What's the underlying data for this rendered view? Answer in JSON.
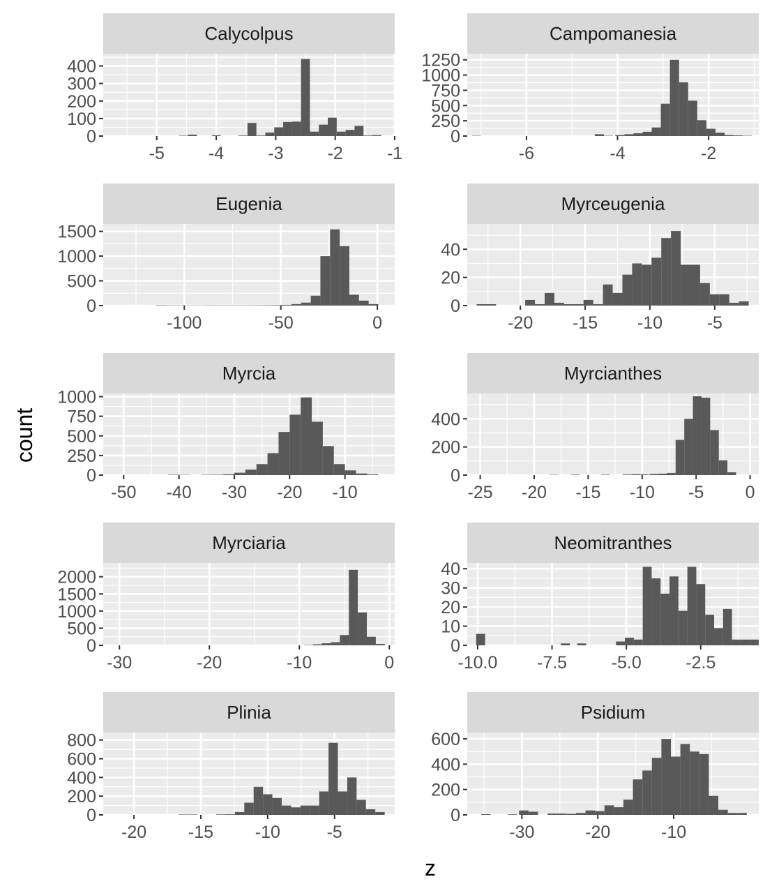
{
  "chart_data": {
    "type": "histogram-facets",
    "xlabel": "z",
    "ylabel": "count",
    "colors": {
      "bar": "#595959",
      "panel": "#ebebeb",
      "strip": "#d9d9d9",
      "grid": "#ffffff"
    },
    "facets": [
      {
        "name": "Calycolpus",
        "xlim": [
          -5.9,
          -1.0
        ],
        "ylim": [
          0,
          470
        ],
        "xticks": [
          -5,
          -4,
          -3,
          -2,
          -1
        ],
        "xticklabels": [
          "-5",
          "-4",
          "-3",
          "-2",
          "-1"
        ],
        "yticks": [
          0,
          100,
          200,
          300,
          400
        ],
        "yticklabels": [
          "0",
          "100",
          "200",
          "300",
          "400"
        ],
        "bins": [
          [
            -4.55,
            2
          ],
          [
            -4.4,
            8
          ],
          [
            -4.0,
            4
          ],
          [
            -3.55,
            3
          ],
          [
            -3.4,
            75
          ],
          [
            -3.25,
            3
          ],
          [
            -3.1,
            20
          ],
          [
            -2.95,
            50
          ],
          [
            -2.8,
            80
          ],
          [
            -2.65,
            82
          ],
          [
            -2.5,
            440
          ],
          [
            -2.35,
            25
          ],
          [
            -2.2,
            65
          ],
          [
            -2.05,
            105
          ],
          [
            -1.9,
            25
          ],
          [
            -1.75,
            35
          ],
          [
            -1.6,
            58
          ],
          [
            -1.45,
            3
          ],
          [
            -1.3,
            5
          ]
        ],
        "binwidth": 0.15
      },
      {
        "name": "Campomanesia",
        "xlim": [
          -7.3,
          -0.9
        ],
        "ylim": [
          0,
          1350
        ],
        "xticks": [
          -6,
          -4,
          -2
        ],
        "xticklabels": [
          "-6",
          "-4",
          "-2"
        ],
        "yticks": [
          0,
          250,
          500,
          750,
          1000,
          1250
        ],
        "yticklabels": [
          "0",
          "250",
          "500",
          "750",
          "1000",
          "1250"
        ],
        "bins": [
          [
            -7.1,
            5
          ],
          [
            -4.4,
            30
          ],
          [
            -4.2,
            5
          ],
          [
            -3.95,
            15
          ],
          [
            -3.75,
            30
          ],
          [
            -3.55,
            45
          ],
          [
            -3.35,
            70
          ],
          [
            -3.15,
            140
          ],
          [
            -2.95,
            530
          ],
          [
            -2.75,
            1250
          ],
          [
            -2.55,
            880
          ],
          [
            -2.35,
            580
          ],
          [
            -2.15,
            260
          ],
          [
            -1.95,
            120
          ],
          [
            -1.75,
            55
          ],
          [
            -1.55,
            15
          ],
          [
            -1.35,
            10
          ],
          [
            -1.15,
            5
          ]
        ],
        "binwidth": 0.2
      },
      {
        "name": "Eugenia",
        "xlim": [
          -142,
          9
        ],
        "ylim": [
          0,
          1650
        ],
        "xticks": [
          -100,
          -50,
          0
        ],
        "xticklabels": [
          "-100",
          "-50",
          "0"
        ],
        "yticks": [
          0,
          500,
          1000,
          1500
        ],
        "yticklabels": [
          "0",
          "500",
          "1000",
          "1500"
        ],
        "bins": [
          [
            -112,
            8
          ],
          [
            -107,
            5
          ],
          [
            -102,
            5
          ],
          [
            -97,
            4
          ],
          [
            -92,
            4
          ],
          [
            -87,
            6
          ],
          [
            -82,
            5
          ],
          [
            -77,
            5
          ],
          [
            -72,
            5
          ],
          [
            -67,
            5
          ],
          [
            -62,
            6
          ],
          [
            -57,
            8
          ],
          [
            -52,
            10
          ],
          [
            -47,
            15
          ],
          [
            -42,
            30
          ],
          [
            -37,
            60
          ],
          [
            -32,
            200
          ],
          [
            -27,
            1000
          ],
          [
            -22,
            1540
          ],
          [
            -17,
            1200
          ],
          [
            -12,
            220
          ],
          [
            -7,
            100
          ],
          [
            -2,
            30
          ]
        ],
        "binwidth": 5
      },
      {
        "name": "Myrceugenia",
        "xlim": [
          -24.1,
          -1.6
        ],
        "ylim": [
          0,
          58
        ],
        "xticks": [
          -20,
          -15,
          -10,
          -5
        ],
        "xticklabels": [
          "-20",
          "-15",
          "-10",
          "-5"
        ],
        "yticks": [
          0,
          20,
          40
        ],
        "yticklabels": [
          "0",
          "20",
          "40"
        ],
        "bins": [
          [
            -23.0,
            1
          ],
          [
            -22.25,
            1
          ],
          [
            -19.25,
            4
          ],
          [
            -18.5,
            1
          ],
          [
            -17.75,
            9
          ],
          [
            -17.0,
            2
          ],
          [
            -16.25,
            1
          ],
          [
            -15.5,
            1
          ],
          [
            -14.75,
            4
          ],
          [
            -14.0,
            1
          ],
          [
            -13.25,
            15
          ],
          [
            -12.5,
            9
          ],
          [
            -11.75,
            22
          ],
          [
            -11.0,
            30
          ],
          [
            -10.25,
            29
          ],
          [
            -9.5,
            34
          ],
          [
            -8.75,
            48
          ],
          [
            -8.0,
            53
          ],
          [
            -7.25,
            29
          ],
          [
            -6.5,
            29
          ],
          [
            -5.75,
            16
          ],
          [
            -5.0,
            8
          ],
          [
            -4.25,
            8
          ],
          [
            -3.5,
            2
          ],
          [
            -2.75,
            3
          ]
        ],
        "binwidth": 0.75
      },
      {
        "name": "Myrcia",
        "xlim": [
          -53.7,
          -1.0
        ],
        "ylim": [
          0,
          1040
        ],
        "xticks": [
          -50,
          -40,
          -30,
          -20,
          -10
        ],
        "xticklabels": [
          "-50",
          "-40",
          "-30",
          "-20",
          "-10"
        ],
        "yticks": [
          0,
          250,
          500,
          750,
          1000
        ],
        "yticklabels": [
          "0",
          "250",
          "500",
          "750",
          "1000"
        ],
        "bins": [
          [
            -41,
            5
          ],
          [
            -39,
            3
          ],
          [
            -35,
            4
          ],
          [
            -33,
            5
          ],
          [
            -31,
            10
          ],
          [
            -29,
            30
          ],
          [
            -27,
            70
          ],
          [
            -25,
            140
          ],
          [
            -23,
            280
          ],
          [
            -21,
            550
          ],
          [
            -19,
            770
          ],
          [
            -17,
            990
          ],
          [
            -15,
            680
          ],
          [
            -13,
            370
          ],
          [
            -11,
            140
          ],
          [
            -9,
            60
          ],
          [
            -7,
            20
          ],
          [
            -5,
            8
          ]
        ],
        "binwidth": 2
      },
      {
        "name": "Myrcianthes",
        "xlim": [
          -26.2,
          0.8
        ],
        "ylim": [
          0,
          580
        ],
        "xticks": [
          -25,
          -20,
          -15,
          -10,
          -5,
          0
        ],
        "xticklabels": [
          "-25",
          "-20",
          "-15",
          "-10",
          "-5",
          "0"
        ],
        "yticks": [
          0,
          200,
          400
        ],
        "yticklabels": [
          "0",
          "200",
          "400"
        ],
        "bins": [
          [
            -18.2,
            2
          ],
          [
            -16.2,
            3
          ],
          [
            -13.4,
            3
          ],
          [
            -11.4,
            4
          ],
          [
            -10.6,
            6
          ],
          [
            -9.8,
            5
          ],
          [
            -8.9,
            8
          ],
          [
            -8.1,
            10
          ],
          [
            -7.3,
            15
          ],
          [
            -6.5,
            250
          ],
          [
            -5.7,
            400
          ],
          [
            -4.9,
            560
          ],
          [
            -4.1,
            550
          ],
          [
            -3.3,
            320
          ],
          [
            -2.5,
            105
          ],
          [
            -1.7,
            20
          ]
        ],
        "binwidth": 0.8
      },
      {
        "name": "Myrciaria",
        "xlim": [
          -31.8,
          0.6
        ],
        "ylim": [
          0,
          2400
        ],
        "xticks": [
          -30,
          -20,
          -10,
          0
        ],
        "xticklabels": [
          "-30",
          "-20",
          "-10",
          "0"
        ],
        "yticks": [
          0,
          500,
          1000,
          1500,
          2000
        ],
        "yticklabels": [
          "0",
          "500",
          "1000",
          "1500",
          "2000"
        ],
        "bins": [
          [
            -9.0,
            10
          ],
          [
            -8.0,
            30
          ],
          [
            -7.0,
            60
          ],
          [
            -6.0,
            90
          ],
          [
            -5.0,
            300
          ],
          [
            -4.0,
            2200
          ],
          [
            -3.0,
            960
          ],
          [
            -2.0,
            250
          ],
          [
            -1.0,
            40
          ]
        ],
        "binwidth": 1
      },
      {
        "name": "Neomitranthes",
        "xlim": [
          -10.35,
          -0.55
        ],
        "ylim": [
          0,
          43
        ],
        "xticks": [
          -10.0,
          -7.5,
          -5.0,
          -2.5
        ],
        "xticklabels": [
          "-10.0",
          "-7.5",
          "-5.0",
          "-2.5"
        ],
        "yticks": [
          0,
          10,
          20,
          30,
          40
        ],
        "yticklabels": [
          "0",
          "10",
          "20",
          "30",
          "40"
        ],
        "bins": [
          [
            -9.9,
            6
          ],
          [
            -7.05,
            1
          ],
          [
            -6.5,
            1
          ],
          [
            -5.2,
            2
          ],
          [
            -4.9,
            4
          ],
          [
            -4.6,
            3
          ],
          [
            -4.3,
            41
          ],
          [
            -4.0,
            35
          ],
          [
            -3.7,
            27
          ],
          [
            -3.4,
            36
          ],
          [
            -3.1,
            18
          ],
          [
            -2.8,
            41
          ],
          [
            -2.5,
            32
          ],
          [
            -2.2,
            16
          ],
          [
            -1.9,
            9
          ],
          [
            -1.6,
            19
          ],
          [
            -1.3,
            3
          ],
          [
            -1.0,
            3
          ],
          [
            -0.7,
            3
          ]
        ],
        "binwidth": 0.3
      },
      {
        "name": "Plinia",
        "xlim": [
          -22.3,
          -0.5
        ],
        "ylim": [
          0,
          880
        ],
        "xticks": [
          -20,
          -15,
          -10,
          -5
        ],
        "xticklabels": [
          "-20",
          "-15",
          "-10",
          "-5"
        ],
        "yticks": [
          0,
          200,
          400,
          600,
          800
        ],
        "yticklabels": [
          "0",
          "200",
          "400",
          "600",
          "800"
        ],
        "bins": [
          [
            -16.3,
            4
          ],
          [
            -15.6,
            4
          ],
          [
            -13.5,
            5
          ],
          [
            -12.8,
            6
          ],
          [
            -12.1,
            30
          ],
          [
            -11.4,
            130
          ],
          [
            -10.7,
            300
          ],
          [
            -10.0,
            220
          ],
          [
            -9.3,
            180
          ],
          [
            -8.6,
            100
          ],
          [
            -7.9,
            80
          ],
          [
            -7.2,
            100
          ],
          [
            -6.5,
            100
          ],
          [
            -5.8,
            250
          ],
          [
            -5.1,
            770
          ],
          [
            -4.4,
            250
          ],
          [
            -3.7,
            400
          ],
          [
            -3.0,
            160
          ],
          [
            -2.3,
            60
          ],
          [
            -1.6,
            30
          ]
        ],
        "binwidth": 0.7
      },
      {
        "name": "Psidium",
        "xlim": [
          -37.2,
          1.2
        ],
        "ylim": [
          0,
          650
        ],
        "xticks": [
          -30,
          -20,
          -10
        ],
        "xticklabels": [
          "-30",
          "-20",
          "-10"
        ],
        "yticks": [
          0,
          200,
          400,
          600
        ],
        "yticklabels": [
          "0",
          "200",
          "400",
          "600"
        ],
        "bins": [
          [
            -34.75,
            5
          ],
          [
            -31.25,
            4
          ],
          [
            -29.75,
            35
          ],
          [
            -28.5,
            25
          ],
          [
            -26.0,
            10
          ],
          [
            -24.75,
            10
          ],
          [
            -23.5,
            8
          ],
          [
            -22.25,
            15
          ],
          [
            -21.0,
            35
          ],
          [
            -19.75,
            30
          ],
          [
            -18.5,
            75
          ],
          [
            -17.25,
            60
          ],
          [
            -16.0,
            120
          ],
          [
            -14.75,
            280
          ],
          [
            -13.5,
            350
          ],
          [
            -12.25,
            450
          ],
          [
            -11.0,
            600
          ],
          [
            -9.75,
            460
          ],
          [
            -8.5,
            560
          ],
          [
            -7.25,
            500
          ],
          [
            -6.0,
            480
          ],
          [
            -4.75,
            150
          ],
          [
            -3.5,
            40
          ],
          [
            -2.25,
            15
          ],
          [
            -1.0,
            15
          ]
        ],
        "binwidth": 1.25
      }
    ]
  }
}
